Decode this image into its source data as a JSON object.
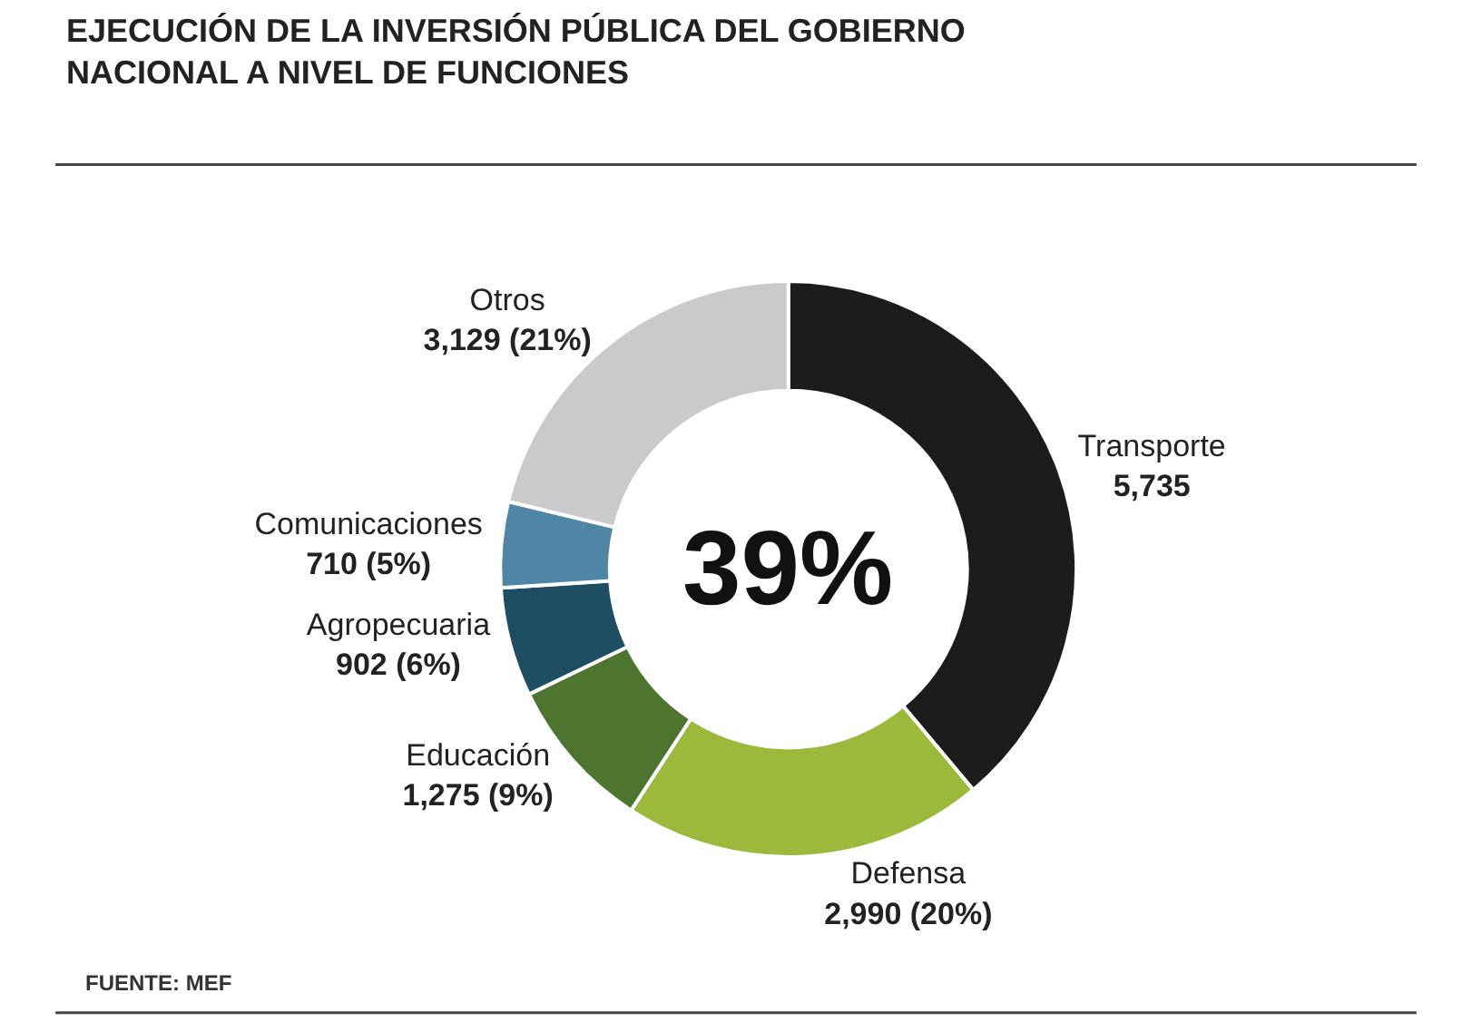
{
  "chart_data": {
    "type": "donut",
    "title": "EJECUCIÓN DE LA INVERSIÓN PÚBLICA DEL GOBIERNO NACIONAL A NIVEL DE FUNCIONES",
    "categories": [
      "Transporte",
      "Defensa",
      "Educación",
      "Agropecuaria",
      "Comunicaciones",
      "Otros"
    ],
    "values": [
      5735,
      2990,
      1275,
      902,
      710,
      3129
    ],
    "value_labels": [
      "5,735",
      "2,990 (20%)",
      "1,275 (9%)",
      "902 (6%)",
      "710 (5%)",
      "3,129 (21%)"
    ],
    "colors": [
      "#1c1c1c",
      "#9cb93c",
      "#4e7530",
      "#1d4e62",
      "#4f86a6",
      "#c9cacc"
    ],
    "annotations": [
      "39%",
      "FUENTE: MEF"
    ],
    "legend": false
  }
}
